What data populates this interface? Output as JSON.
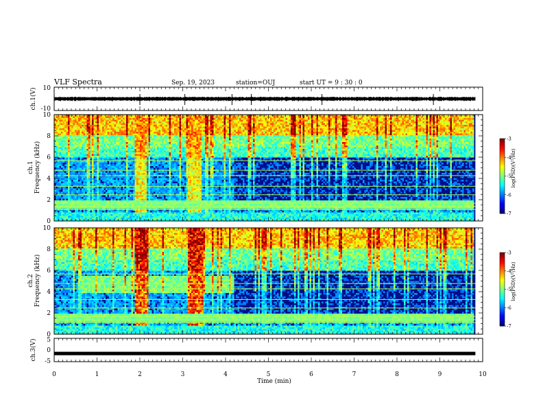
{
  "header": {
    "title": "VLF Spectra",
    "date": "Sep. 19, 2023",
    "station": "station=OUJ",
    "start": "start UT = 9 : 30 : 0"
  },
  "chart_data": [
    {
      "type": "line",
      "name": "ch1-waveform",
      "ylabel": "ch.1(V)",
      "ylim": [
        -10,
        10
      ],
      "yticks": [
        "10",
        "-10"
      ],
      "x_range": [
        0,
        10
      ],
      "data_end_min": 9.83,
      "description_values": {
        "mean": 0,
        "amplitude": 1.5
      }
    },
    {
      "type": "heatmap",
      "name": "ch1-spectrogram",
      "ylabel": "ch.1\nFrequency (kHz)",
      "ylabel_lines": [
        "ch.1",
        "Frequency (kHz)"
      ],
      "ylim": [
        0,
        10
      ],
      "yticks": [
        "0",
        "2",
        "4",
        "6",
        "8",
        "10"
      ],
      "x_range": [
        0,
        10
      ],
      "data_end_min": 9.83,
      "colorbar": {
        "label": "log(PSD)(V²/Hz)",
        "range": [
          -7,
          -3
        ],
        "ticks": [
          "-3",
          "-4",
          "-5",
          "-6",
          "-7"
        ]
      },
      "bursts_min": [
        [
          1.88,
          2.12
        ],
        [
          3.12,
          3.42
        ]
      ]
    },
    {
      "type": "heatmap",
      "name": "ch2-spectrogram",
      "ylabel_lines": [
        "ch.2",
        "Frequency (kHz)"
      ],
      "ylim": [
        0,
        10
      ],
      "yticks": [
        "0",
        "2",
        "4",
        "6",
        "8",
        "10"
      ],
      "x_range": [
        0,
        10
      ],
      "data_end_min": 9.83,
      "colorbar": {
        "label": "log(PSD)(V²/Hz)",
        "range": [
          -7,
          -3
        ],
        "ticks": [
          "-3",
          "-4",
          "-5",
          "-6",
          "-7"
        ]
      },
      "bursts_min": [
        [
          1.85,
          2.18
        ],
        [
          3.1,
          3.45
        ]
      ]
    },
    {
      "type": "line",
      "name": "ch3-waveform",
      "ylabel": "ch.3(V)",
      "ylim": [
        -5,
        5
      ],
      "yticks": [
        "5",
        "0",
        "-5"
      ],
      "x_range": [
        0,
        10
      ],
      "data_end_min": 9.83,
      "constant_value": -1.5
    }
  ],
  "xaxis": {
    "label": "Time (min)",
    "ticks": [
      "0",
      "1",
      "2",
      "3",
      "4",
      "5",
      "6",
      "7",
      "8",
      "9",
      "10"
    ]
  },
  "colors": {
    "spectro_low": "#00007f",
    "spectro_high": "#ff0000"
  }
}
